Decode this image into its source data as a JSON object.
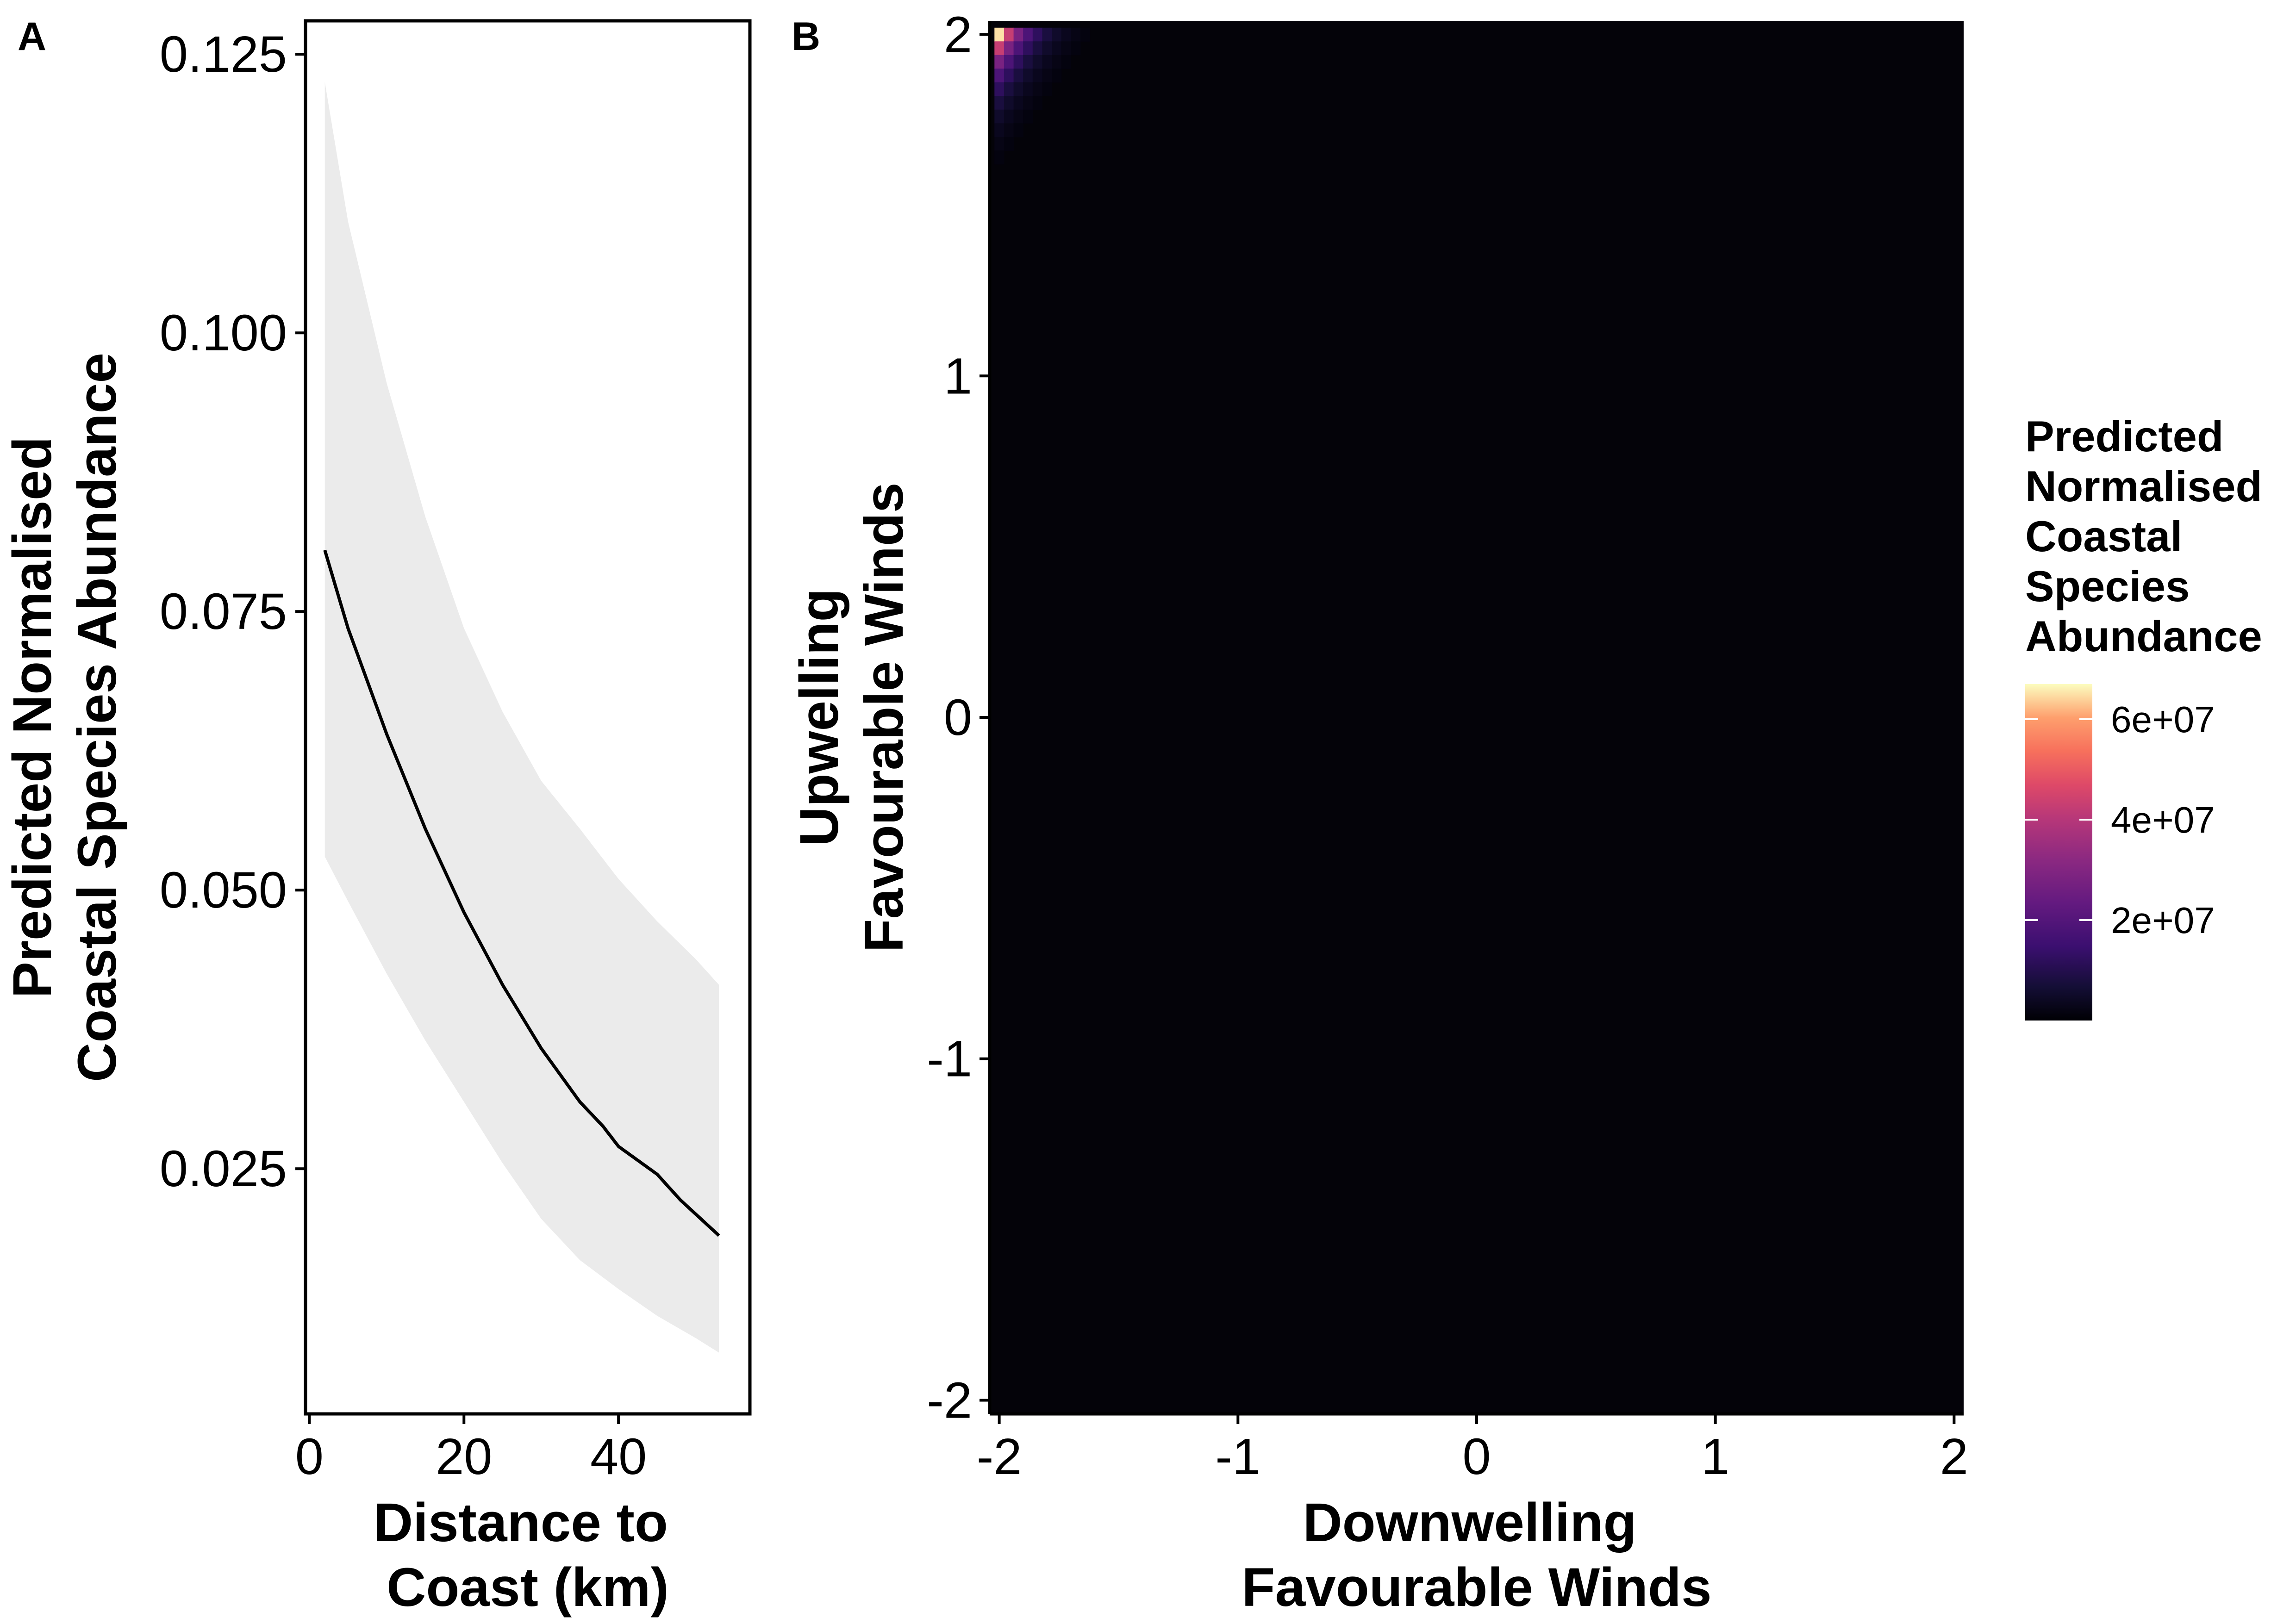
{
  "chart_data": [
    {
      "panel": "A",
      "type": "line",
      "panel_label": "A",
      "xlabel": [
        "Distance to",
        "Coast (km)"
      ],
      "ylabel": [
        "Predicted Normalised",
        "Coastal Species Abundance"
      ],
      "xlim": [
        -0.5,
        57
      ],
      "ylim": [
        0.003,
        0.128
      ],
      "xticks": [
        0,
        20,
        40
      ],
      "xtick_labels": [
        "0",
        "20",
        "40"
      ],
      "yticks": [
        0.025,
        0.05,
        0.075,
        0.1,
        0.125
      ],
      "ytick_labels": [
        "0.025",
        "0.050",
        "0.075",
        "0.100",
        "0.125"
      ],
      "grid": false,
      "series": [
        {
          "name": "fit",
          "color": "#000000",
          "x": [
            2,
            5,
            10,
            15,
            20,
            25,
            30,
            35,
            38,
            40,
            45,
            48,
            53
          ],
          "y": [
            0.0805,
            0.0735,
            0.064,
            0.0555,
            0.048,
            0.0415,
            0.0358,
            0.031,
            0.0288,
            0.027,
            0.0245,
            0.0222,
            0.019
          ]
        },
        {
          "name": "ci_upper",
          "color": "#ebebeb",
          "x": [
            2,
            5,
            10,
            15,
            20,
            25,
            30,
            35,
            40,
            45,
            50,
            53
          ],
          "y": [
            0.1225,
            0.11,
            0.0955,
            0.0835,
            0.0735,
            0.066,
            0.0598,
            0.0555,
            0.051,
            0.0472,
            0.0438,
            0.0415
          ]
        },
        {
          "name": "ci_lower",
          "color": "#ebebeb",
          "x": [
            2,
            5,
            10,
            15,
            20,
            25,
            30,
            35,
            40,
            45,
            50,
            53
          ],
          "y": [
            0.053,
            0.049,
            0.0425,
            0.0365,
            0.031,
            0.0255,
            0.0205,
            0.0168,
            0.0142,
            0.0118,
            0.0098,
            0.0085
          ]
        }
      ]
    },
    {
      "panel": "B",
      "type": "heatmap",
      "panel_label": "B",
      "xlabel": [
        "Downwelling",
        "Favourable Winds"
      ],
      "ylabel": [
        "Upwelling",
        "Favourable Winds"
      ],
      "xlim": [
        -2.04,
        2.04
      ],
      "ylim": [
        -2.04,
        2.04
      ],
      "xticks": [
        -2,
        -1,
        0,
        1,
        2
      ],
      "xtick_labels": [
        "-2",
        "-1",
        "0",
        "1",
        "2"
      ],
      "yticks": [
        -2,
        -1,
        0,
        1,
        2
      ],
      "ytick_labels": [
        "-2",
        "-1",
        "0",
        "1",
        "2"
      ],
      "grid_cells": 100,
      "background_value": 0,
      "hot_corner": {
        "x_min": -2,
        "y_max": 2,
        "note": "abundance highest at (-2, 2), decaying rapidly away from the corner",
        "peak_value": 65000000
      },
      "colorscale": "magma",
      "legend": {
        "title": [
          "Predicted",
          "Normalised",
          "Coastal",
          "Species",
          "Abundance"
        ],
        "breaks": [
          20000000,
          40000000,
          60000000
        ],
        "break_labels": [
          "2e+07",
          "4e+07",
          "6e+07"
        ],
        "range": [
          0,
          67000000
        ],
        "position": "right"
      }
    }
  ]
}
